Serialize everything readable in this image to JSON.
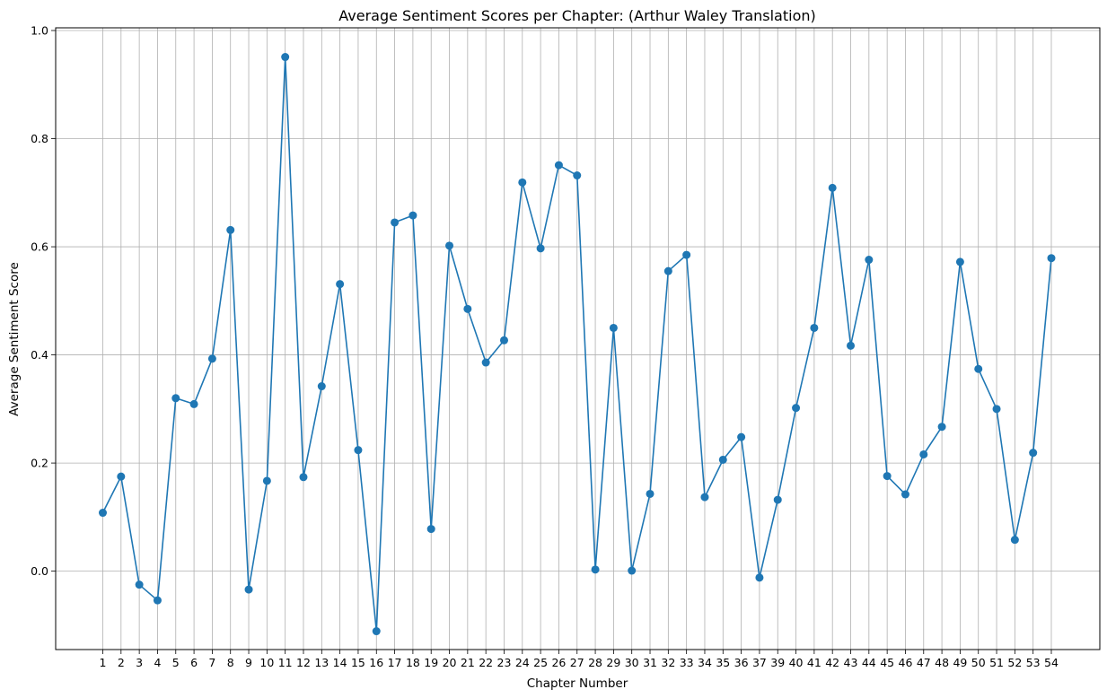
{
  "chart_data": {
    "type": "line",
    "title": "Average Sentiment Scores per Chapter: (Arthur Waley Translation)",
    "xlabel": "Chapter Number",
    "ylabel": "Average Sentiment Score",
    "ylim": [
      -0.145,
      1.005
    ],
    "y_ticks": [
      "0.0",
      "0.2",
      "0.4",
      "0.6",
      "0.8",
      "1.0"
    ],
    "grid": true,
    "marker": "circle",
    "color": "#1f77b4",
    "categories": [
      "1",
      "2",
      "3",
      "4",
      "5",
      "6",
      "7",
      "8",
      "9",
      "10",
      "11",
      "12",
      "13",
      "14",
      "15",
      "16",
      "17",
      "18",
      "19",
      "20",
      "21",
      "22",
      "23",
      "24",
      "25",
      "26",
      "27",
      "28",
      "29",
      "30",
      "31",
      "32",
      "33",
      "34",
      "35",
      "36",
      "37",
      "39",
      "40",
      "41",
      "42",
      "43",
      "44",
      "45",
      "46",
      "47",
      "48",
      "49",
      "50",
      "51",
      "52",
      "53",
      "54"
    ],
    "values": [
      0.108,
      0.175,
      -0.025,
      -0.054,
      0.32,
      0.309,
      0.393,
      0.631,
      -0.034,
      0.167,
      0.951,
      0.174,
      0.342,
      0.531,
      0.224,
      -0.111,
      0.645,
      0.658,
      0.078,
      0.602,
      0.485,
      0.386,
      0.427,
      0.719,
      0.597,
      0.751,
      0.732,
      0.003,
      0.45,
      0.001,
      0.143,
      0.555,
      0.585,
      0.137,
      0.206,
      0.248,
      -0.012,
      0.132,
      0.302,
      0.45,
      0.709,
      0.417,
      0.576,
      0.176,
      0.142,
      0.216,
      0.267,
      0.572,
      0.374,
      0.3,
      0.058,
      0.219,
      0.579
    ]
  }
}
